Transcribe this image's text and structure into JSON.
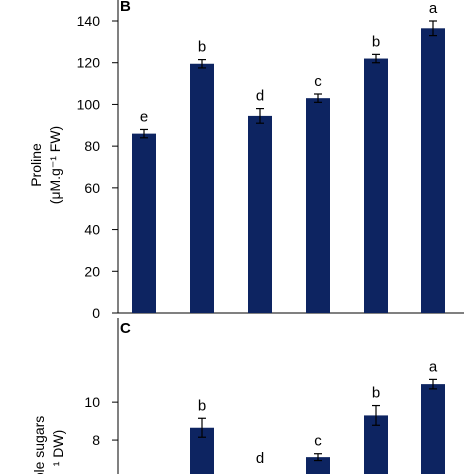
{
  "chart_data": [
    {
      "panel": "B",
      "type": "bar",
      "ylabel_line1": "Proline",
      "ylabel_line2": "(μM.g⁻¹ FW)",
      "ylim": [
        0,
        140
      ],
      "yticks": [
        0,
        20,
        40,
        60,
        80,
        100,
        120,
        140
      ],
      "grid": false,
      "bar_color": "#0d2461",
      "values": [
        86,
        119.5,
        94.5,
        103,
        122,
        136.5
      ],
      "errors": [
        2,
        2,
        3.5,
        2,
        2,
        3.5
      ],
      "letters": [
        "e",
        "b",
        "d",
        "c",
        "b",
        "a"
      ]
    },
    {
      "panel": "C",
      "type": "bar",
      "ylabel_line1": "ble sugars",
      "ylabel_line2": "¹ DW)",
      "ylim": [
        6,
        11.8
      ],
      "yticks": [
        8,
        10
      ],
      "grid": false,
      "bar_color": "#0d2461",
      "values": [
        null,
        8.65,
        null,
        7.1,
        9.3,
        10.95
      ],
      "errors": [
        null,
        0.5,
        null,
        0.18,
        0.52,
        0.25
      ],
      "letters": [
        "",
        "b",
        "d",
        "c",
        "b",
        "a"
      ]
    }
  ]
}
